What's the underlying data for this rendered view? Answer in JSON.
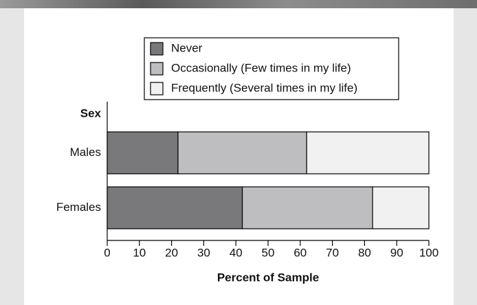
{
  "chart_data": {
    "type": "stacked-barh",
    "y_label": "Sex",
    "x_label": "Percent of Sample",
    "categories": [
      "Males",
      "Females"
    ],
    "series": [
      {
        "name": "Never",
        "color": "#79797b",
        "values": [
          22,
          42
        ]
      },
      {
        "name": "Occasionally (Few times in my life)",
        "color": "#bebec0",
        "values": [
          40,
          40.5
        ]
      },
      {
        "name": "Frequently (Several times in my life)",
        "color": "#f1f1f1",
        "values": [
          38,
          17.5
        ]
      }
    ],
    "xlim": [
      0,
      100
    ],
    "xticks": [
      0,
      10,
      20,
      30,
      40,
      50,
      60,
      70,
      80,
      90,
      100
    ]
  }
}
